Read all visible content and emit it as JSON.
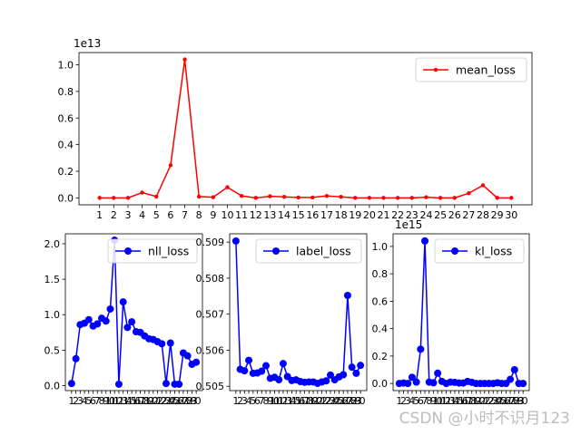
{
  "watermark": "CSDN @小时不识月123",
  "chart_data": [
    {
      "type": "line",
      "x": [
        1,
        2,
        3,
        4,
        5,
        6,
        7,
        8,
        9,
        10,
        11,
        12,
        13,
        14,
        15,
        16,
        17,
        18,
        19,
        20,
        21,
        22,
        23,
        24,
        25,
        26,
        27,
        28,
        29,
        30
      ],
      "xticks": [
        "1",
        "2",
        "3",
        "4",
        "5",
        "6",
        "7",
        "8",
        "9",
        "10",
        "11",
        "12",
        "13",
        "14",
        "15",
        "16",
        "17",
        "18",
        "19",
        "20",
        "21",
        "22",
        "23",
        "24",
        "25",
        "26",
        "27",
        "28",
        "29",
        "30"
      ],
      "series": [
        {
          "name": "mean_loss",
          "color": "#ff0000",
          "marker": "small-dot",
          "values": [
            0.0,
            0.0,
            0.0,
            0.04,
            0.01,
            0.245,
            1.04,
            0.01,
            0.005,
            0.08,
            0.015,
            0.0,
            0.012,
            0.008,
            0.003,
            0.003,
            0.015,
            0.008,
            0.0,
            0.0,
            0.0,
            0.0,
            0.0,
            0.005,
            0.0,
            0.0,
            0.035,
            0.095,
            0.0,
            0.0
          ]
        }
      ],
      "yticks": [
        0.0,
        0.2,
        0.4,
        0.6,
        0.8,
        1.0
      ],
      "ytick_format": "1dp",
      "offset_text": "1e13",
      "ylim": [
        -0.052,
        1.092
      ],
      "xlim": [
        -0.45,
        31.45
      ],
      "legend_position": "upper-right",
      "grid": false
    },
    {
      "type": "line",
      "x": [
        1,
        2,
        3,
        4,
        5,
        6,
        7,
        8,
        9,
        10,
        11,
        12,
        13,
        14,
        15,
        16,
        17,
        18,
        19,
        20,
        21,
        22,
        23,
        24,
        25,
        26,
        27,
        28,
        29,
        30
      ],
      "xticks": [
        "1",
        "2",
        "3",
        "4",
        "5",
        "6",
        "7",
        "8",
        "9",
        "10",
        "11",
        "12",
        "13",
        "14",
        "15",
        "16",
        "17",
        "18",
        "19",
        "20",
        "21",
        "22",
        "23",
        "24",
        "25",
        "26",
        "27",
        "28",
        "29",
        "30"
      ],
      "series": [
        {
          "name": "nll_loss",
          "color": "#0000ff",
          "marker": "large-dot",
          "values": [
            0.03,
            0.38,
            0.86,
            0.88,
            0.93,
            0.84,
            0.87,
            0.95,
            0.91,
            1.08,
            2.05,
            0.02,
            1.18,
            0.82,
            0.9,
            0.76,
            0.75,
            0.7,
            0.66,
            0.65,
            0.62,
            0.59,
            0.03,
            0.6,
            0.02,
            0.02,
            0.46,
            0.42,
            0.3,
            0.33
          ]
        }
      ],
      "yticks": [
        0.0,
        0.5,
        1.0,
        1.5,
        2.0
      ],
      "ytick_format": "1dp",
      "ylim": [
        -0.07,
        2.14
      ],
      "xlim": [
        -0.45,
        31.45
      ],
      "legend_position": "upper-right",
      "grid": false
    },
    {
      "type": "line",
      "x": [
        1,
        2,
        3,
        4,
        5,
        6,
        7,
        8,
        9,
        10,
        11,
        12,
        13,
        14,
        15,
        16,
        17,
        18,
        19,
        20,
        21,
        22,
        23,
        24,
        25,
        26,
        27,
        28,
        29,
        30
      ],
      "xticks": [
        "1",
        "2",
        "3",
        "4",
        "5",
        "6",
        "7",
        "8",
        "9",
        "10",
        "11",
        "12",
        "13",
        "14",
        "15",
        "16",
        "17",
        "18",
        "19",
        "20",
        "21",
        "22",
        "23",
        "24",
        "25",
        "26",
        "27",
        "28",
        "29",
        "30"
      ],
      "series": [
        {
          "name": "label_loss",
          "color": "#0000ff",
          "marker": "large-dot",
          "values": [
            0.50903,
            0.50547,
            0.50543,
            0.50572,
            0.50536,
            0.50537,
            0.50542,
            0.50557,
            0.50522,
            0.50525,
            0.50518,
            0.50563,
            0.50527,
            0.50516,
            0.50518,
            0.50513,
            0.50511,
            0.50512,
            0.50512,
            0.50508,
            0.50512,
            0.50515,
            0.50531,
            0.50518,
            0.50526,
            0.50532,
            0.50752,
            0.50553,
            0.50536,
            0.50558
          ]
        }
      ],
      "yticks": [
        0.505,
        0.506,
        0.507,
        0.508,
        0.509
      ],
      "ytick_format": "3dp",
      "ylim": [
        0.50488,
        0.50923
      ],
      "xlim": [
        -0.45,
        31.45
      ],
      "legend_position": "upper-right",
      "grid": false
    },
    {
      "type": "line",
      "x": [
        1,
        2,
        3,
        4,
        5,
        6,
        7,
        8,
        9,
        10,
        11,
        12,
        13,
        14,
        15,
        16,
        17,
        18,
        19,
        20,
        21,
        22,
        23,
        24,
        25,
        26,
        27,
        28,
        29,
        30
      ],
      "xticks": [
        "1",
        "2",
        "3",
        "4",
        "5",
        "6",
        "7",
        "8",
        "9",
        "10",
        "11",
        "12",
        "13",
        "14",
        "15",
        "16",
        "17",
        "18",
        "19",
        "20",
        "21",
        "22",
        "23",
        "24",
        "25",
        "26",
        "27",
        "28",
        "29",
        "30"
      ],
      "series": [
        {
          "name": "kl_loss",
          "color": "#0000ff",
          "marker": "large-dot",
          "values": [
            0.0,
            0.003,
            0.0,
            0.045,
            0.01,
            0.25,
            1.04,
            0.01,
            0.005,
            0.075,
            0.015,
            0.0,
            0.01,
            0.008,
            0.003,
            0.003,
            0.015,
            0.008,
            0.0,
            0.0,
            0.0,
            0.0,
            0.0,
            0.005,
            0.0,
            0.0,
            0.03,
            0.1,
            0.0,
            0.0
          ]
        }
      ],
      "yticks": [
        0.0,
        0.2,
        0.4,
        0.6,
        0.8,
        1.0
      ],
      "ytick_format": "1dp",
      "offset_text": "1e15",
      "ylim": [
        -0.052,
        1.092
      ],
      "xlim": [
        -0.45,
        31.45
      ],
      "legend_position": "upper-right",
      "grid": false
    }
  ]
}
